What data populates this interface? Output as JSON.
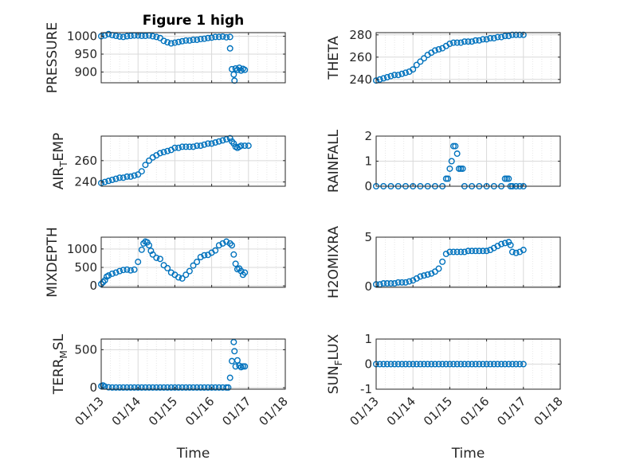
{
  "title": "Figure 1 high",
  "xlabel": "Time",
  "x_ticks": [
    "01/13",
    "01/14",
    "01/15",
    "01/16",
    "01/17",
    "01/18"
  ],
  "colors": {
    "marker": "#0072BD",
    "axis": "#262626",
    "grid": "#d9d9d9"
  },
  "chart_data": [
    {
      "type": "scatter",
      "ylabel": "PRESSURE",
      "title": "Figure 1 high",
      "xlabel": "",
      "xlim": [
        13,
        18
      ],
      "ylim": [
        870,
        1010
      ],
      "yticks": [
        900,
        950,
        1000
      ],
      "grid": true,
      "series": [
        {
          "x": [
            13.0,
            13.1,
            13.2,
            13.3,
            13.4,
            13.5,
            13.6,
            13.7,
            13.8,
            13.9,
            14.0,
            14.1,
            14.2,
            14.3,
            14.4,
            14.5,
            14.6,
            14.7,
            14.8,
            14.9,
            15.0,
            15.1,
            15.2,
            15.3,
            15.4,
            15.5,
            15.6,
            15.7,
            15.8,
            15.9,
            16.0,
            16.1,
            16.2,
            16.3,
            16.4,
            16.5,
            16.5,
            16.55,
            16.6,
            16.62,
            16.65,
            16.7,
            16.75,
            16.8,
            16.85,
            16.9
          ],
          "y": [
            1000,
            1002,
            1006,
            1003,
            1001,
            999,
            998,
            1000,
            1001,
            1002,
            1002,
            1001,
            1001,
            1002,
            1000,
            998,
            995,
            987,
            983,
            980,
            982,
            984,
            986,
            988,
            988,
            990,
            990,
            992,
            993,
            995,
            996,
            998,
            998,
            999,
            997,
            998,
            966,
            908,
            893,
            876,
            910,
            906,
            912,
            904,
            909,
            906
          ]
        }
      ]
    },
    {
      "type": "scatter",
      "ylabel": "THETA",
      "xlabel": "",
      "xlim": [
        13,
        18
      ],
      "ylim": [
        237,
        282
      ],
      "yticks": [
        240,
        260,
        280
      ],
      "grid": true,
      "series": [
        {
          "x": [
            13.0,
            13.1,
            13.2,
            13.3,
            13.4,
            13.5,
            13.6,
            13.7,
            13.8,
            13.9,
            14.0,
            14.1,
            14.2,
            14.3,
            14.4,
            14.5,
            14.6,
            14.7,
            14.8,
            14.9,
            15.0,
            15.1,
            15.2,
            15.3,
            15.4,
            15.5,
            15.6,
            15.7,
            15.8,
            15.9,
            16.0,
            16.1,
            16.2,
            16.3,
            16.4,
            16.5,
            16.6,
            16.7,
            16.8,
            16.9,
            17.0
          ],
          "y": [
            239,
            240,
            241,
            242,
            243,
            244,
            244,
            245,
            246,
            247,
            249,
            253,
            256,
            259,
            262,
            264,
            266,
            267,
            268,
            270,
            272,
            273,
            273,
            273,
            274,
            274,
            274,
            275,
            275,
            276,
            276,
            277,
            277,
            278,
            278,
            279,
            279,
            280,
            280,
            280,
            280
          ]
        }
      ]
    },
    {
      "type": "scatter",
      "ylabel": "AIR_TEMP",
      "xlabel": "",
      "xlim": [
        13,
        18
      ],
      "ylim": [
        236,
        283
      ],
      "yticks": [
        240,
        260
      ],
      "grid": true,
      "series": [
        {
          "x": [
            13.0,
            13.1,
            13.2,
            13.3,
            13.4,
            13.5,
            13.6,
            13.7,
            13.8,
            13.9,
            14.0,
            14.1,
            14.2,
            14.3,
            14.4,
            14.5,
            14.6,
            14.7,
            14.8,
            14.9,
            15.0,
            15.1,
            15.2,
            15.3,
            15.4,
            15.5,
            15.6,
            15.7,
            15.8,
            15.9,
            16.0,
            16.1,
            16.2,
            16.3,
            16.4,
            16.5,
            16.55,
            16.6,
            16.65,
            16.7,
            16.75,
            16.8,
            16.9,
            17.0
          ],
          "y": [
            239,
            240,
            241,
            242,
            243,
            244,
            244,
            245,
            245,
            246,
            247,
            250,
            256,
            260,
            263,
            265,
            267,
            268,
            269,
            270,
            272,
            272,
            273,
            273,
            273,
            273,
            274,
            274,
            275,
            276,
            276,
            277,
            278,
            279,
            280,
            281,
            278,
            276,
            273,
            272,
            273,
            274,
            274,
            274
          ]
        }
      ]
    },
    {
      "type": "scatter",
      "ylabel": "RAINFALL",
      "xlabel": "",
      "xlim": [
        13,
        18
      ],
      "ylim": [
        0,
        2
      ],
      "yticks": [
        0,
        1,
        2
      ],
      "grid": true,
      "series": [
        {
          "x": [
            13.0,
            13.2,
            13.4,
            13.6,
            13.8,
            14.0,
            14.2,
            14.4,
            14.6,
            14.8,
            14.9,
            14.95,
            15.0,
            15.05,
            15.1,
            15.15,
            15.2,
            15.25,
            15.3,
            15.35,
            15.4,
            15.6,
            15.8,
            16.0,
            16.2,
            16.4,
            16.5,
            16.55,
            16.6,
            16.65,
            16.7,
            16.8,
            16.9,
            17.0
          ],
          "y": [
            0,
            0,
            0,
            0,
            0,
            0,
            0,
            0,
            0,
            0,
            0.3,
            0.3,
            0.7,
            1.0,
            1.6,
            1.6,
            1.3,
            0.7,
            0.7,
            0.7,
            0,
            0,
            0,
            0,
            0,
            0,
            0.3,
            0.3,
            0.3,
            0,
            0,
            0,
            0,
            0
          ]
        }
      ]
    },
    {
      "type": "scatter",
      "ylabel": "MIXDEPTH",
      "xlabel": "",
      "xlim": [
        13,
        18
      ],
      "ylim": [
        -40,
        1320
      ],
      "yticks": [
        0,
        500,
        1000
      ],
      "grid": true,
      "series": [
        {
          "x": [
            13.0,
            13.05,
            13.1,
            13.15,
            13.2,
            13.3,
            13.4,
            13.5,
            13.6,
            13.7,
            13.8,
            13.9,
            14.0,
            14.1,
            14.15,
            14.2,
            14.25,
            14.3,
            14.35,
            14.4,
            14.5,
            14.6,
            14.7,
            14.8,
            14.9,
            15.0,
            15.1,
            15.2,
            15.3,
            15.4,
            15.5,
            15.6,
            15.7,
            15.8,
            15.9,
            16.0,
            16.1,
            16.2,
            16.3,
            16.4,
            16.5,
            16.55,
            16.6,
            16.65,
            16.7,
            16.75,
            16.8,
            16.85,
            16.9
          ],
          "y": [
            50,
            100,
            150,
            250,
            280,
            330,
            360,
            400,
            430,
            440,
            420,
            440,
            650,
            980,
            1150,
            1200,
            1180,
            1100,
            950,
            850,
            760,
            730,
            560,
            480,
            360,
            300,
            230,
            200,
            300,
            400,
            550,
            650,
            780,
            830,
            840,
            900,
            960,
            1100,
            1150,
            1200,
            1150,
            1100,
            850,
            600,
            450,
            470,
            400,
            300,
            360
          ]
        }
      ]
    },
    {
      "type": "scatter",
      "ylabel": "H2OMIXRA",
      "xlabel": "",
      "xlim": [
        13,
        18
      ],
      "ylim": [
        -0.1,
        5
      ],
      "yticks": [
        0,
        5
      ],
      "grid": true,
      "series": [
        {
          "x": [
            13.0,
            13.1,
            13.2,
            13.3,
            13.4,
            13.5,
            13.6,
            13.7,
            13.8,
            13.9,
            14.0,
            14.1,
            14.2,
            14.3,
            14.4,
            14.5,
            14.6,
            14.7,
            14.8,
            14.9,
            15.0,
            15.1,
            15.2,
            15.3,
            15.4,
            15.5,
            15.6,
            15.7,
            15.8,
            15.9,
            16.0,
            16.1,
            16.2,
            16.3,
            16.4,
            16.5,
            16.6,
            16.65,
            16.7,
            16.8,
            16.9,
            17.0
          ],
          "y": [
            0.2,
            0.2,
            0.3,
            0.3,
            0.3,
            0.3,
            0.4,
            0.4,
            0.4,
            0.5,
            0.6,
            0.8,
            1.0,
            1.1,
            1.2,
            1.3,
            1.5,
            1.8,
            2.5,
            3.3,
            3.5,
            3.5,
            3.5,
            3.5,
            3.5,
            3.6,
            3.6,
            3.6,
            3.6,
            3.6,
            3.6,
            3.7,
            3.9,
            4.1,
            4.3,
            4.4,
            4.5,
            4.2,
            3.5,
            3.4,
            3.5,
            3.7
          ]
        }
      ]
    },
    {
      "type": "scatter",
      "ylabel": "TERR_MSL",
      "xlabel": "",
      "xlim": [
        13,
        18
      ],
      "ylim": [
        -20,
        640
      ],
      "yticks": [
        0,
        500
      ],
      "grid": true,
      "series": [
        {
          "x": [
            13.0,
            13.05,
            13.1,
            13.2,
            13.3,
            13.4,
            13.5,
            13.6,
            13.7,
            13.8,
            13.9,
            14.0,
            14.1,
            14.2,
            14.3,
            14.4,
            14.5,
            14.6,
            14.7,
            14.8,
            14.9,
            15.0,
            15.1,
            15.2,
            15.3,
            15.4,
            15.5,
            15.6,
            15.7,
            15.8,
            15.9,
            16.0,
            16.1,
            16.2,
            16.3,
            16.4,
            16.45,
            16.5,
            16.55,
            16.6,
            16.62,
            16.65,
            16.7,
            16.75,
            16.8,
            16.85,
            16.9
          ],
          "y": [
            20,
            30,
            15,
            5,
            2,
            2,
            2,
            2,
            2,
            2,
            2,
            2,
            2,
            2,
            2,
            2,
            2,
            2,
            2,
            2,
            2,
            2,
            2,
            2,
            2,
            2,
            2,
            2,
            2,
            2,
            2,
            2,
            2,
            2,
            2,
            2,
            2,
            130,
            350,
            600,
            480,
            280,
            360,
            290,
            270,
            280,
            280
          ]
        }
      ]
    },
    {
      "type": "scatter",
      "ylabel": "SUN_FLUX",
      "xlabel": "",
      "xlim": [
        13,
        18
      ],
      "ylim": [
        -1,
        1
      ],
      "yticks": [
        -1,
        0,
        1
      ],
      "grid": true,
      "series": [
        {
          "x": [
            13.0,
            13.1,
            13.2,
            13.3,
            13.4,
            13.5,
            13.6,
            13.7,
            13.8,
            13.9,
            14.0,
            14.1,
            14.2,
            14.3,
            14.4,
            14.5,
            14.6,
            14.7,
            14.8,
            14.9,
            15.0,
            15.1,
            15.2,
            15.3,
            15.4,
            15.5,
            15.6,
            15.7,
            15.8,
            15.9,
            16.0,
            16.1,
            16.2,
            16.3,
            16.4,
            16.5,
            16.6,
            16.7,
            16.8,
            16.9,
            17.0
          ],
          "y": [
            0,
            0,
            0,
            0,
            0,
            0,
            0,
            0,
            0,
            0,
            0,
            0,
            0,
            0,
            0,
            0,
            0,
            0,
            0,
            0,
            0,
            0,
            0,
            0,
            0,
            0,
            0,
            0,
            0,
            0,
            0,
            0,
            0,
            0,
            0,
            0,
            0,
            0,
            0,
            0,
            0
          ]
        }
      ]
    }
  ]
}
